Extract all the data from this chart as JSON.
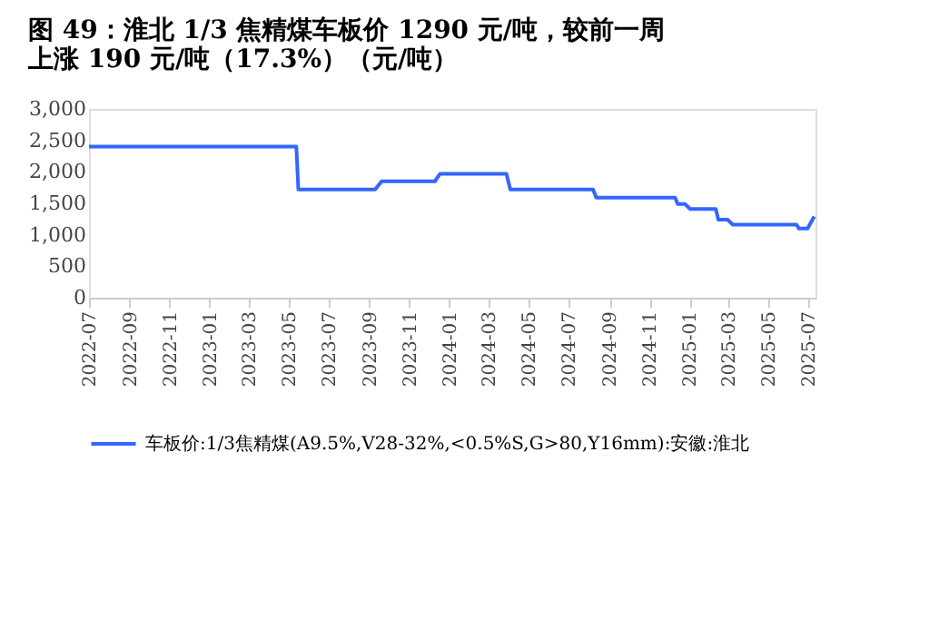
{
  "chart_data": {
    "type": "line",
    "title": "图 49：淮北 1/3 焦精煤车板价 1290 元/吨，较前一周上涨 190 元/吨（17.3%）（元/吨）",
    "x": [
      "2022-07-01",
      "2023-05-13",
      "2023-05-16",
      "2023-09-10",
      "2023-09-20",
      "2023-12-10",
      "2023-12-18",
      "2024-03-28",
      "2024-04-03",
      "2024-08-07",
      "2024-08-12",
      "2024-12-10",
      "2024-12-14",
      "2024-12-25",
      "2025-01-02",
      "2025-02-10",
      "2025-02-14",
      "2025-02-28",
      "2025-03-08",
      "2025-06-13",
      "2025-06-17",
      "2025-06-30",
      "2025-07-10"
    ],
    "series": [
      {
        "name": "车板价:1/3焦精煤(A9.5%,V28-32%,<0.5%S,G>80,Y16mm):安徽:淮北",
        "color": "#3366ff",
        "values": [
          2400,
          2400,
          1720,
          1720,
          1850,
          1850,
          1970,
          1970,
          1720,
          1720,
          1590,
          1590,
          1490,
          1490,
          1410,
          1410,
          1240,
          1240,
          1160,
          1160,
          1100,
          1100,
          1290
        ]
      }
    ],
    "xlim": [
      "2022-07-01",
      "2025-07-12"
    ],
    "xticks": [
      "2022-07",
      "2022-09",
      "2022-11",
      "2023-01",
      "2023-03",
      "2023-05",
      "2023-07",
      "2023-09",
      "2023-11",
      "2024-01",
      "2024-03",
      "2024-05",
      "2024-07",
      "2024-09",
      "2024-11",
      "2025-01",
      "2025-03",
      "2025-05",
      "2025-07"
    ],
    "ylim": [
      0,
      3000
    ],
    "yticks": [
      0,
      500,
      {
        "value": 1000,
        "label": "1,000"
      },
      {
        "value": 1500,
        "label": "1,500"
      },
      {
        "value": 2000,
        "label": "2,000"
      },
      {
        "value": 2500,
        "label": "2,500"
      },
      {
        "value": 3000,
        "label": "3,000"
      }
    ],
    "grid": false,
    "legend": "bottom",
    "marker": "none",
    "line_style": "solid"
  }
}
